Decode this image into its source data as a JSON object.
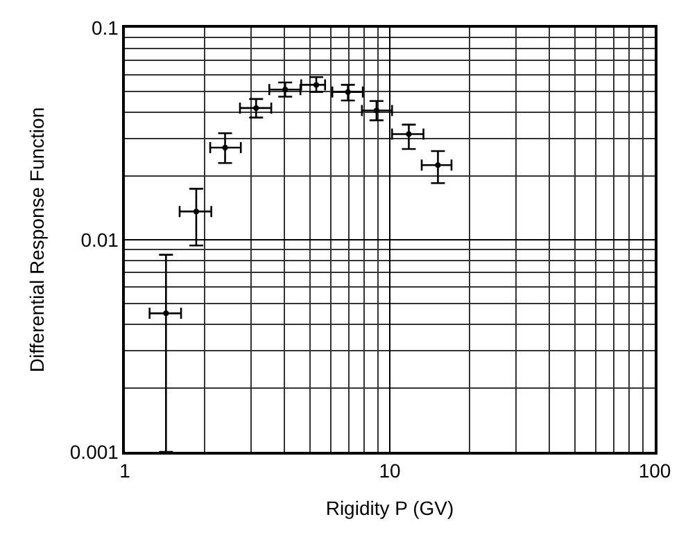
{
  "chart_data": {
    "type": "scatter",
    "xlabel": "Rigidity P (GV)",
    "ylabel": "Differential Response Function",
    "x": [
      1.43,
      1.86,
      2.39,
      3.13,
      4.03,
      5.28,
      6.95,
      8.91,
      11.8,
      15.2
    ],
    "color": "#000000",
    "values": [
      0.0045,
      0.0136,
      0.0272,
      0.0418,
      0.0511,
      0.0538,
      0.0498,
      0.0407,
      0.0315,
      0.0225
    ],
    "errors": [
      [
        0.001,
        0.0085
      ],
      [
        0.0094,
        0.0174
      ],
      [
        0.023,
        0.0318
      ],
      [
        0.0377,
        0.0461
      ],
      [
        0.0473,
        0.0552
      ],
      [
        0.0498,
        0.0585
      ],
      [
        0.0454,
        0.0538
      ],
      [
        0.0366,
        0.0451
      ],
      [
        0.0268,
        0.0349
      ],
      [
        0.0185,
        0.0262
      ]
    ],
    "xerrors": [
      [
        1.24,
        1.63
      ],
      [
        1.61,
        2.12
      ],
      [
        2.1,
        2.74
      ],
      [
        2.72,
        3.57
      ],
      [
        3.51,
        4.6
      ],
      [
        4.63,
        5.7
      ],
      [
        6.07,
        7.91
      ],
      [
        7.85,
        10.2
      ],
      [
        10.2,
        13.4
      ],
      [
        13.2,
        17.1
      ]
    ],
    "log": "xy",
    "xlim": [
      1,
      100
    ],
    "ylim": [
      0.001,
      0.1
    ],
    "xticks": [
      1,
      10,
      100
    ],
    "yticks": [
      0.001,
      0.01,
      0.1
    ],
    "grid": true,
    "marker": "circle"
  }
}
